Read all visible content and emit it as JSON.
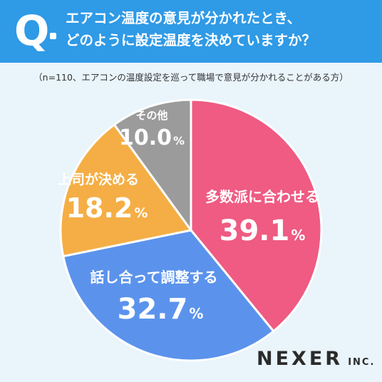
{
  "header": {
    "q_mark": "Q",
    "question_lines": [
      "エアコン温度の意見が分かれたとき、",
      "どのように設定温度を決めていますか？"
    ]
  },
  "subtitle": "（n=110、エアコンの温度設定を巡って職場で意見が分かれることがある方）",
  "chart_data": {
    "type": "pie",
    "title": "エアコン温度の意見が分かれたとき、どのように設定温度を決めていますか？",
    "subtitle": "（n=110、エアコンの温度設定を巡って職場で意見が分かれることがある方）",
    "unit": "%",
    "start_angle_deg": 0,
    "direction": "clockwise",
    "slices": [
      {
        "label": "多数派に合わせる",
        "value": 39.1,
        "value_text": "39.1",
        "color": "#ef5b82"
      },
      {
        "label": "話し合って調整する",
        "value": 32.7,
        "value_text": "32.7",
        "color": "#5b93ec"
      },
      {
        "label": "上司が決める",
        "value": 18.2,
        "value_text": "18.2",
        "color": "#f5ae45"
      },
      {
        "label": "その他",
        "value": 10.0,
        "value_text": "10.0",
        "color": "#9b9b9b"
      }
    ]
  },
  "logo": {
    "main": "NEXER",
    "sub": "INC."
  }
}
